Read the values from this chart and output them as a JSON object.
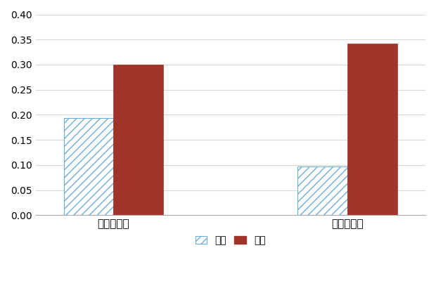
{
  "categories": [
    "客室稼働率",
    "定員稼働率"
  ],
  "monthly_values": [
    0.194,
    0.097
  ],
  "yearly_values": [
    0.3,
    0.342
  ],
  "monthly_facecolor": "#ffffff",
  "monthly_edgecolor": "#6baed6",
  "yearly_color": "#a0342a",
  "ylim": [
    0.0,
    0.4
  ],
  "yticks": [
    0.0,
    0.05,
    0.1,
    0.15,
    0.2,
    0.25,
    0.3,
    0.35,
    0.4
  ],
  "legend_monthly": "月次",
  "legend_yearly": "年次",
  "bar_width": 0.32,
  "background_color": "#ffffff",
  "grid_color": "#d9d9d9",
  "bottom_spine_color": "#aaaaaa"
}
